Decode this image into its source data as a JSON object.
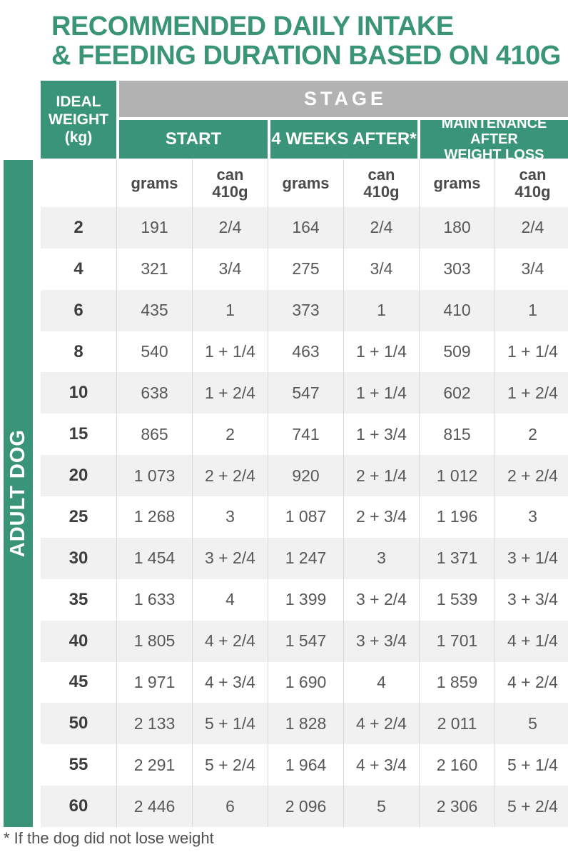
{
  "title": {
    "line1": "RECOMMENDED DAILY INTAKE",
    "line2": "& FEEDING DURATION BASED ON 410G"
  },
  "sidebar_label": "ADULT DOG",
  "footnote": "* If the dog did not lose weight",
  "colors": {
    "brand_green": "#3a9478",
    "stage_gray": "#b2b2b2",
    "row_alt_gray": "#f1f1f1",
    "divider_gray": "#d9d9d9",
    "value_text": "#585858",
    "weight_text": "#3d3d3d"
  },
  "table": {
    "corner_header": {
      "line1": "IDEAL",
      "line2": "WEIGHT",
      "line3": "(kg)"
    },
    "stage_label": "STAGE",
    "stage_groups": [
      {
        "label": "START"
      },
      {
        "label": "4 WEEKS AFTER*"
      },
      {
        "line1": "MAINTENANCE AFTER",
        "line2": "WEIGHT LOSS"
      }
    ],
    "unit_columns": [
      {
        "label": "grams"
      },
      {
        "line1": "can",
        "line2": "410g"
      },
      {
        "label": "grams"
      },
      {
        "line1": "can",
        "line2": "410g"
      },
      {
        "label": "grams"
      },
      {
        "line1": "can",
        "line2": "410g"
      }
    ],
    "rows": [
      {
        "weight": "2",
        "values": [
          "191",
          "2/4",
          "164",
          "2/4",
          "180",
          "2/4"
        ]
      },
      {
        "weight": "4",
        "values": [
          "321",
          "3/4",
          "275",
          "3/4",
          "303",
          "3/4"
        ]
      },
      {
        "weight": "6",
        "values": [
          "435",
          "1",
          "373",
          "1",
          "410",
          "1"
        ]
      },
      {
        "weight": "8",
        "values": [
          "540",
          "1 + 1/4",
          "463",
          "1 + 1/4",
          "509",
          "1 + 1/4"
        ]
      },
      {
        "weight": "10",
        "values": [
          "638",
          "1 + 2/4",
          "547",
          "1 + 1/4",
          "602",
          "1 + 2/4"
        ]
      },
      {
        "weight": "15",
        "values": [
          "865",
          "2",
          "741",
          "1 + 3/4",
          "815",
          "2"
        ]
      },
      {
        "weight": "20",
        "values": [
          "1 073",
          "2 + 2/4",
          "920",
          "2 + 1/4",
          "1 012",
          "2 + 2/4"
        ]
      },
      {
        "weight": "25",
        "values": [
          "1 268",
          "3",
          "1 087",
          "2 + 3/4",
          "1 196",
          "3"
        ]
      },
      {
        "weight": "30",
        "values": [
          "1 454",
          "3 + 2/4",
          "1 247",
          "3",
          "1 371",
          "3 + 1/4"
        ]
      },
      {
        "weight": "35",
        "values": [
          "1 633",
          "4",
          "1 399",
          "3 + 2/4",
          "1 539",
          "3 + 3/4"
        ]
      },
      {
        "weight": "40",
        "values": [
          "1 805",
          "4 + 2/4",
          "1 547",
          "3 + 3/4",
          "1 701",
          "4 + 1/4"
        ]
      },
      {
        "weight": "45",
        "values": [
          "1 971",
          "4 + 3/4",
          "1 690",
          "4",
          "1 859",
          "4 + 2/4"
        ]
      },
      {
        "weight": "50",
        "values": [
          "2 133",
          "5 + 1/4",
          "1 828",
          "4 + 2/4",
          "2 011",
          "5"
        ]
      },
      {
        "weight": "55",
        "values": [
          "2 291",
          "5 + 2/4",
          "1 964",
          "4 + 3/4",
          "2 160",
          "5 + 1/4"
        ]
      },
      {
        "weight": "60",
        "values": [
          "2 446",
          "6",
          "2 096",
          "5",
          "2 306",
          "5 + 2/4"
        ]
      }
    ]
  }
}
